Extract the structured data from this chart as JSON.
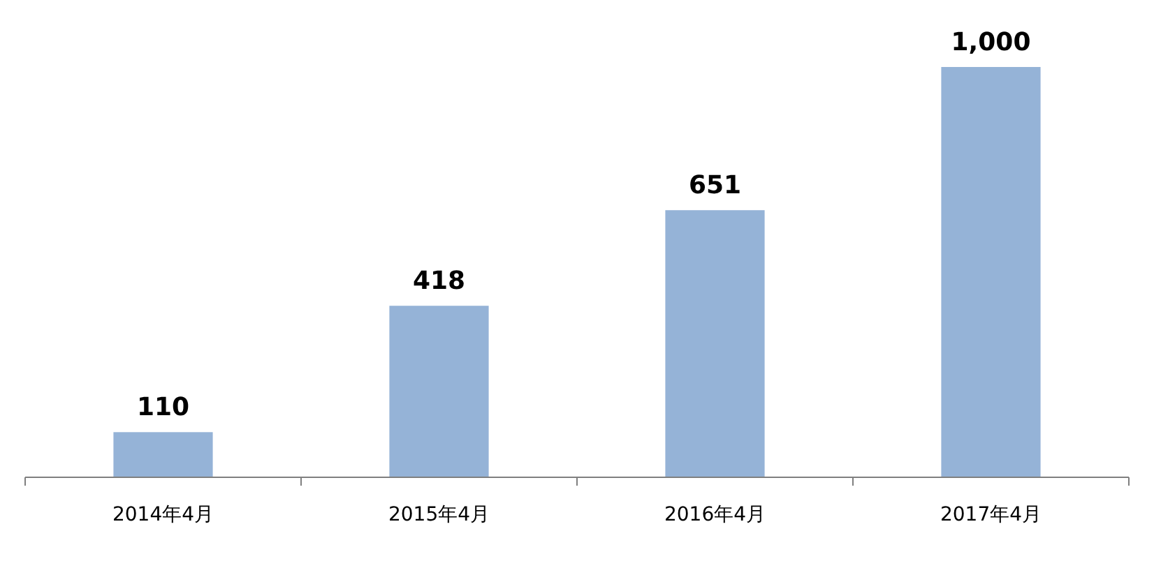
{
  "chart_data": {
    "type": "bar",
    "categories": [
      "2014年4月",
      "2015年4月",
      "2016年4月",
      "2017年4月"
    ],
    "values": [
      110,
      418,
      651,
      1000
    ],
    "value_labels": [
      "110",
      "418",
      "651",
      "1,000"
    ],
    "color": "#95b3d7"
  }
}
